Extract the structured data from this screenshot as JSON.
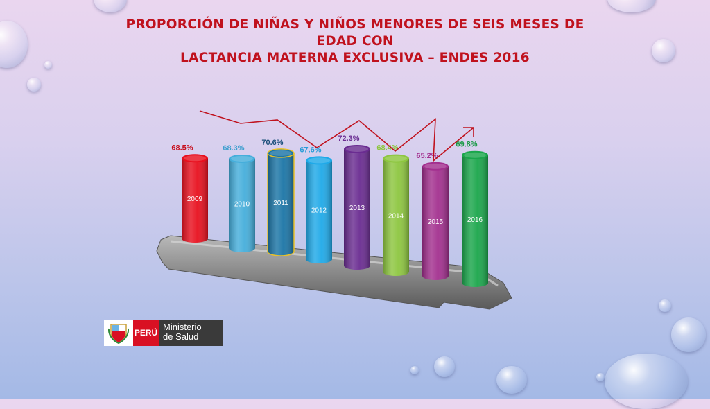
{
  "title": {
    "line1": "PROPORCIÓN DE NIÑAS Y NIÑOS MENORES DE SEIS MESES DE EDAD CON",
    "line2": "LACTANCIA MATERNA EXCLUSIVA – ENDES 2016"
  },
  "chart_data": {
    "type": "bar",
    "categories": [
      "2009",
      "2010",
      "2011",
      "2012",
      "2013",
      "2014",
      "2015",
      "2016"
    ],
    "values": [
      68.5,
      68.3,
      70.6,
      67.6,
      72.3,
      68.4,
      65.2,
      69.8
    ],
    "value_labels": [
      "68.5%",
      "68.3%",
      "70.6%",
      "67.6%",
      "72.3%",
      "68.4%",
      "65.2%",
      "69.8%"
    ],
    "colors": [
      "#e8101e",
      "#45aedb",
      "#1b75a6",
      "#1fa9e8",
      "#6a2c91",
      "#8dc63f",
      "#a3308f",
      "#1aa64b"
    ],
    "label_colors": [
      "#c8101e",
      "#3f9fcf",
      "#1b4f7a",
      "#2a9dd8",
      "#6a2c91",
      "#8dc63f",
      "#a3308f",
      "#1a9a46"
    ],
    "trend_line": true,
    "title": "",
    "xlabel": "",
    "ylabel": ""
  },
  "logo": {
    "country": "PERÚ",
    "ministry_line1": "Ministerio",
    "ministry_line2": "de Salud"
  }
}
